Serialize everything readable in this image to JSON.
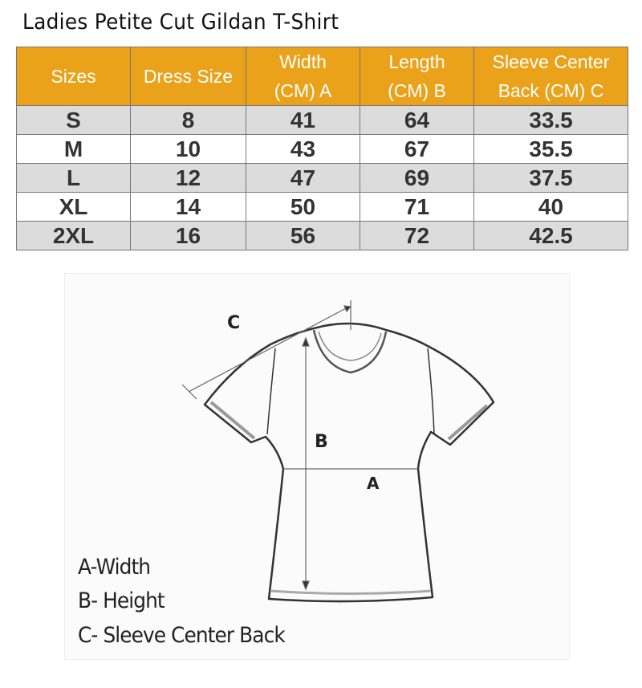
{
  "title": "Ladies Petite Cut Gildan T-Shirt",
  "colors": {
    "header_bg": "#eaa21a",
    "row_shaded": "#dcdcdc"
  },
  "table": {
    "headers": [
      "Sizes",
      "Dress Size",
      "Width\n(CM) A",
      "Length\n(CM) B",
      "Sleeve Center\nBack (CM) C"
    ],
    "rows": [
      [
        "S",
        "8",
        "41",
        "64",
        "33.5"
      ],
      [
        "M",
        "10",
        "43",
        "67",
        "35.5"
      ],
      [
        "L",
        "12",
        "47",
        "69",
        "37.5"
      ],
      [
        "XL",
        "14",
        "50",
        "71",
        "40"
      ],
      [
        "2XL",
        "16",
        "56",
        "72",
        "42.5"
      ]
    ]
  },
  "diagram": {
    "marks": {
      "a": "A",
      "b": "B",
      "c": "C"
    },
    "legend": [
      "A-Width",
      "B- Height",
      "C- Sleeve Center Back"
    ]
  }
}
